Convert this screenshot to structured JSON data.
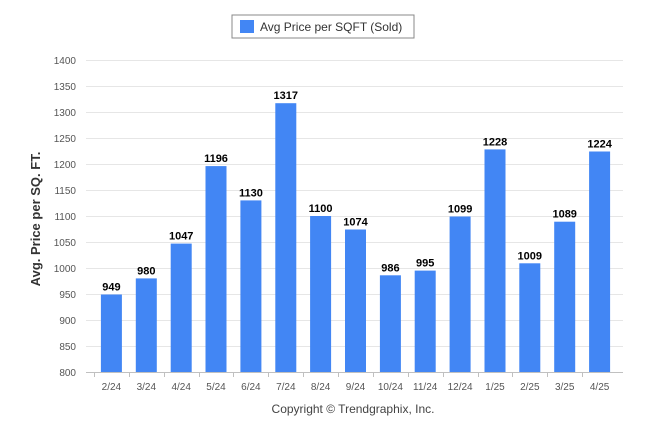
{
  "chart_data": {
    "type": "bar",
    "categories": [
      "2/24",
      "3/24",
      "4/24",
      "5/24",
      "6/24",
      "7/24",
      "8/24",
      "9/24",
      "10/24",
      "11/24",
      "12/24",
      "1/25",
      "2/25",
      "3/25",
      "4/25"
    ],
    "series": [
      {
        "name": "Avg Price per SQFT (Sold)",
        "values": [
          949,
          980,
          1047,
          1196,
          1130,
          1317,
          1100,
          1074,
          986,
          995,
          1099,
          1228,
          1009,
          1089,
          1224
        ]
      }
    ],
    "xlabel": "",
    "ylabel": "Avg. Price per SQ. FT.",
    "ylim": [
      800,
      1400
    ],
    "yticks": [
      800,
      850,
      900,
      950,
      1000,
      1050,
      1100,
      1150,
      1200,
      1250,
      1300,
      1350,
      1400
    ],
    "grid": true,
    "legend_position": "top-center",
    "bar_color": "#4286f4"
  },
  "footer": "Copyright © Trendgraphix, Inc."
}
